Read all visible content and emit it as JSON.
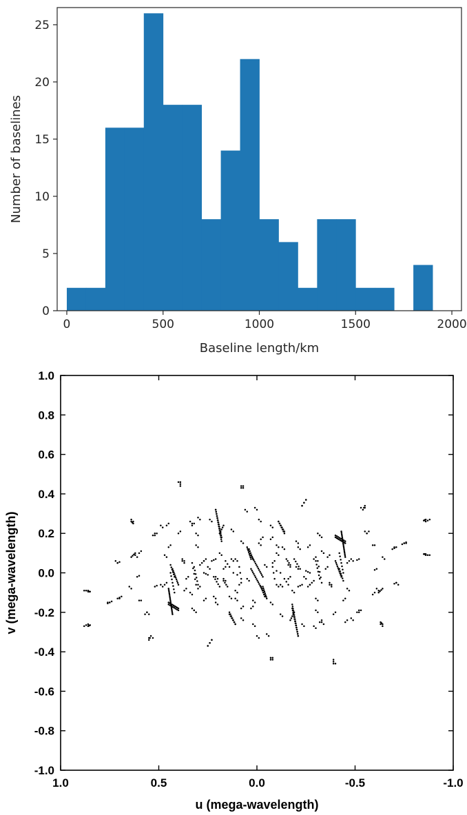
{
  "chart_data": [
    {
      "type": "bar",
      "subtype": "histogram",
      "xlabel": "Baseline length/km",
      "ylabel": "Number of baselines",
      "xlim": [
        -50,
        2050
      ],
      "ylim": [
        0,
        26.5
      ],
      "xticks": [
        0,
        500,
        1000,
        1500,
        2000
      ],
      "yticks": [
        0,
        5,
        10,
        15,
        20,
        25
      ],
      "bin_width": 100,
      "bins": [
        {
          "start": 0,
          "end": 100,
          "count": 2
        },
        {
          "start": 100,
          "end": 200,
          "count": 2
        },
        {
          "start": 200,
          "end": 300,
          "count": 16
        },
        {
          "start": 300,
          "end": 400,
          "count": 16
        },
        {
          "start": 400,
          "end": 500,
          "count": 26
        },
        {
          "start": 500,
          "end": 600,
          "count": 18
        },
        {
          "start": 600,
          "end": 700,
          "count": 18
        },
        {
          "start": 700,
          "end": 800,
          "count": 8
        },
        {
          "start": 800,
          "end": 900,
          "count": 14
        },
        {
          "start": 900,
          "end": 1000,
          "count": 22
        },
        {
          "start": 1000,
          "end": 1100,
          "count": 8
        },
        {
          "start": 1100,
          "end": 1200,
          "count": 6
        },
        {
          "start": 1200,
          "end": 1300,
          "count": 2
        },
        {
          "start": 1300,
          "end": 1400,
          "count": 8
        },
        {
          "start": 1400,
          "end": 1500,
          "count": 8
        },
        {
          "start": 1500,
          "end": 1600,
          "count": 2
        },
        {
          "start": 1600,
          "end": 1700,
          "count": 2
        },
        {
          "start": 1700,
          "end": 1800,
          "count": 0
        },
        {
          "start": 1800,
          "end": 1900,
          "count": 4
        },
        {
          "start": 1900,
          "end": 2000,
          "count": 0
        }
      ],
      "colors": {
        "bar": "#1f77b4",
        "frame": "#262626"
      }
    },
    {
      "type": "scatter",
      "xlabel": "u (mega-wavelength)",
      "ylabel": "v (mega-wavelength)",
      "xlim": [
        1.0,
        -1.0
      ],
      "ylim": [
        -1.0,
        1.0
      ],
      "x_reversed": true,
      "xticks": [
        1.0,
        0.5,
        0.0,
        -0.5,
        -1.0
      ],
      "xtick_labels": [
        "1.0",
        "0.5",
        "0.0",
        "-0.5",
        "-1.0"
      ],
      "yticks": [
        1.0,
        0.8,
        0.6,
        0.4,
        0.2,
        0.0,
        -0.2,
        -0.4,
        -0.6,
        -0.8,
        -1.0
      ],
      "ytick_labels": [
        "1.0",
        "0.8",
        "0.6",
        "0.4",
        "0.2",
        "0.0",
        "-0.2",
        "-0.4",
        "-0.6",
        "-0.8",
        "-1.0"
      ],
      "marker_color": "#000000",
      "tracks": [
        {
          "u0": 0.86,
          "v0": -0.095,
          "u1": 0.85,
          "v1": -0.095,
          "n": 4
        },
        {
          "u0": 0.86,
          "v0": -0.27,
          "u1": 0.85,
          "v1": -0.265,
          "n": 4
        },
        {
          "u0": 0.76,
          "v0": -0.155,
          "u1": 0.74,
          "v1": -0.145,
          "n": 3
        },
        {
          "u0": 0.71,
          "v0": -0.13,
          "u1": 0.7,
          "v1": -0.125,
          "n": 2
        },
        {
          "u0": 0.71,
          "v0": 0.05,
          "u1": 0.7,
          "v1": 0.055,
          "n": 2
        },
        {
          "u0": 0.64,
          "v0": 0.26,
          "u1": 0.63,
          "v1": 0.25,
          "n": 3
        },
        {
          "u0": 0.64,
          "v0": 0.08,
          "u1": 0.62,
          "v1": 0.1,
          "n": 4
        },
        {
          "u0": 0.61,
          "v0": -0.02,
          "u1": 0.6,
          "v1": -0.015,
          "n": 2
        },
        {
          "u0": 0.57,
          "v0": -0.21,
          "u1": 0.56,
          "v1": -0.2,
          "n": 2
        },
        {
          "u0": 0.55,
          "v0": -0.34,
          "u1": 0.54,
          "v1": -0.32,
          "n": 3
        },
        {
          "u0": 0.53,
          "v0": 0.19,
          "u1": 0.52,
          "v1": 0.2,
          "n": 2
        },
        {
          "u0": 0.52,
          "v0": -0.07,
          "u1": 0.51,
          "v1": -0.065,
          "n": 2
        },
        {
          "u0": 0.49,
          "v0": 0.24,
          "u1": 0.48,
          "v1": 0.23,
          "n": 2
        },
        {
          "u0": 0.47,
          "v0": 0.09,
          "u1": 0.46,
          "v1": 0.08,
          "n": 2
        },
        {
          "u0": 0.47,
          "v0": -0.06,
          "u1": 0.46,
          "v1": -0.05,
          "n": 2
        },
        {
          "u0": 0.45,
          "v0": -0.08,
          "u1": 0.43,
          "v1": -0.21,
          "n": 18
        },
        {
          "u0": 0.45,
          "v0": -0.16,
          "u1": 0.4,
          "v1": -0.19,
          "n": 8
        },
        {
          "u0": 0.44,
          "v0": 0.04,
          "u1": 0.42,
          "v1": -0.02,
          "n": 6
        },
        {
          "u0": 0.4,
          "v0": 0.46,
          "u1": 0.39,
          "v1": 0.44,
          "n": 2
        },
        {
          "u0": 0.4,
          "v0": 0.2,
          "u1": 0.39,
          "v1": 0.21,
          "n": 2
        },
        {
          "u0": 0.38,
          "v0": 0.07,
          "u1": 0.37,
          "v1": 0.06,
          "n": 2
        },
        {
          "u0": 0.36,
          "v0": -0.03,
          "u1": 0.35,
          "v1": -0.02,
          "n": 2
        },
        {
          "u0": 0.34,
          "v0": -0.1,
          "u1": 0.33,
          "v1": -0.11,
          "n": 2
        },
        {
          "u0": 0.33,
          "v0": -0.18,
          "u1": 0.32,
          "v1": -0.19,
          "n": 2
        },
        {
          "u0": 0.33,
          "v0": 0.24,
          "u1": 0.32,
          "v1": 0.25,
          "n": 2
        },
        {
          "u0": 0.32,
          "v0": 0.03,
          "u1": 0.3,
          "v1": -0.06,
          "n": 6
        },
        {
          "u0": 0.31,
          "v0": 0.14,
          "u1": 0.3,
          "v1": 0.13,
          "n": 2
        },
        {
          "u0": 0.3,
          "v0": 0.28,
          "u1": 0.29,
          "v1": 0.27,
          "n": 2
        },
        {
          "u0": 0.27,
          "v0": 0.06,
          "u1": 0.26,
          "v1": 0.07,
          "n": 2
        },
        {
          "u0": 0.27,
          "v0": 0.0,
          "u1": 0.25,
          "v1": -0.01,
          "n": 3
        },
        {
          "u0": 0.25,
          "v0": -0.37,
          "u1": 0.23,
          "v1": -0.34,
          "n": 3
        },
        {
          "u0": 0.24,
          "v0": 0.27,
          "u1": 0.23,
          "v1": 0.26,
          "n": 2
        },
        {
          "u0": 0.23,
          "v0": 0.06,
          "u1": 0.21,
          "v1": 0.07,
          "n": 3
        },
        {
          "u0": 0.22,
          "v0": -0.12,
          "u1": 0.21,
          "v1": -0.13,
          "n": 2
        },
        {
          "u0": 0.21,
          "v0": -0.02,
          "u1": 0.2,
          "v1": -0.03,
          "n": 2
        },
        {
          "u0": 0.21,
          "v0": 0.32,
          "u1": 0.18,
          "v1": 0.16,
          "n": 16
        },
        {
          "u0": 0.19,
          "v0": 0.2,
          "u1": 0.17,
          "v1": 0.24,
          "n": 5
        },
        {
          "u0": 0.19,
          "v0": 0.1,
          "u1": 0.18,
          "v1": 0.09,
          "n": 2
        },
        {
          "u0": 0.17,
          "v0": -0.04,
          "u1": 0.15,
          "v1": -0.07,
          "n": 4
        },
        {
          "u0": 0.17,
          "v0": 0.02,
          "u1": 0.16,
          "v1": 0.03,
          "n": 2
        },
        {
          "u0": 0.14,
          "v0": -0.21,
          "u1": 0.11,
          "v1": -0.26,
          "n": 6
        },
        {
          "u0": 0.13,
          "v0": 0.22,
          "u1": 0.12,
          "v1": 0.21,
          "n": 2
        },
        {
          "u0": 0.13,
          "v0": 0.07,
          "u1": 0.12,
          "v1": 0.06,
          "n": 2
        },
        {
          "u0": 0.12,
          "v0": 0.0,
          "u1": 0.1,
          "v1": -0.01,
          "n": 2
        },
        {
          "u0": 0.11,
          "v0": -0.13,
          "u1": 0.1,
          "v1": -0.14,
          "n": 2
        },
        {
          "u0": 0.09,
          "v0": 0.03,
          "u1": 0.08,
          "v1": -0.03,
          "n": 3
        },
        {
          "u0": 0.08,
          "v0": 0.16,
          "u1": 0.07,
          "v1": 0.15,
          "n": 2
        },
        {
          "u0": 0.08,
          "v0": -0.23,
          "u1": 0.07,
          "v1": -0.24,
          "n": 2
        },
        {
          "u0": 0.07,
          "v0": 0.44,
          "u1": 0.07,
          "v1": 0.43,
          "n": 2
        },
        {
          "u0": 0.04,
          "v0": 0.12,
          "u1": 0.02,
          "v1": 0.07,
          "n": 6
        },
        {
          "u0": 0.03,
          "v0": -0.18,
          "u1": 0.02,
          "v1": -0.17,
          "n": 2
        },
        {
          "u0": 0.03,
          "v0": 0.02,
          "u1": -0.03,
          "v1": -0.09,
          "n": 14
        },
        {
          "u0": 0.02,
          "v0": -0.26,
          "u1": 0.01,
          "v1": -0.27,
          "n": 2
        },
        {
          "u0": 0.01,
          "v0": 0.33,
          "u1": 0.0,
          "v1": 0.32,
          "n": 2
        },
        {
          "u0": -0.01,
          "v0": 0.15,
          "u1": -0.02,
          "v1": 0.14,
          "n": 2
        },
        {
          "u0": -0.03,
          "v0": -0.07,
          "u1": -0.05,
          "v1": -0.13,
          "n": 8
        },
        {
          "u0": -0.04,
          "v0": 0.04,
          "u1": -0.05,
          "v1": 0.03,
          "n": 2
        },
        {
          "u0": -0.05,
          "v0": -0.31,
          "u1": -0.06,
          "v1": -0.32,
          "n": 2
        },
        {
          "u0": -0.07,
          "v0": 0.17,
          "u1": -0.08,
          "v1": 0.18,
          "n": 2
        },
        {
          "u0": -0.08,
          "v0": 0.05,
          "u1": -0.09,
          "v1": 0.06,
          "n": 2
        },
        {
          "u0": -0.08,
          "v0": -0.44,
          "u1": -0.08,
          "v1": -0.43,
          "n": 2
        },
        {
          "u0": -0.1,
          "v0": 0.1,
          "u1": -0.11,
          "v1": 0.09,
          "n": 2
        },
        {
          "u0": -0.1,
          "v0": -0.06,
          "u1": -0.11,
          "v1": -0.07,
          "n": 2
        },
        {
          "u0": -0.11,
          "v0": 0.26,
          "u1": -0.14,
          "v1": 0.2,
          "n": 7
        },
        {
          "u0": -0.13,
          "v0": 0.13,
          "u1": -0.14,
          "v1": 0.12,
          "n": 2
        },
        {
          "u0": -0.14,
          "v0": -0.03,
          "u1": -0.16,
          "v1": -0.06,
          "n": 3
        },
        {
          "u0": -0.16,
          "v0": 0.04,
          "u1": -0.17,
          "v1": 0.03,
          "n": 2
        },
        {
          "u0": -0.18,
          "v0": -0.18,
          "u1": -0.21,
          "v1": -0.32,
          "n": 14
        },
        {
          "u0": -0.19,
          "v0": 0.07,
          "u1": -0.22,
          "v1": 0.02,
          "n": 5
        },
        {
          "u0": -0.2,
          "v0": 0.16,
          "u1": -0.21,
          "v1": 0.15,
          "n": 2
        },
        {
          "u0": -0.23,
          "v0": 0.34,
          "u1": -0.25,
          "v1": 0.37,
          "n": 3
        },
        {
          "u0": -0.24,
          "v0": -0.02,
          "u1": -0.25,
          "v1": -0.03,
          "n": 2
        },
        {
          "u0": -0.26,
          "v0": 0.13,
          "u1": -0.27,
          "v1": 0.14,
          "n": 2
        },
        {
          "u0": -0.27,
          "v0": -0.06,
          "u1": -0.29,
          "v1": -0.04,
          "n": 3
        },
        {
          "u0": -0.29,
          "v0": 0.07,
          "u1": -0.3,
          "v1": 0.08,
          "n": 2
        },
        {
          "u0": -0.3,
          "v0": -0.19,
          "u1": -0.31,
          "v1": -0.2,
          "n": 2
        },
        {
          "u0": -0.31,
          "v0": 0.2,
          "u1": -0.32,
          "v1": 0.19,
          "n": 2
        },
        {
          "u0": -0.31,
          "v0": 0.06,
          "u1": -0.33,
          "v1": -0.05,
          "n": 5
        },
        {
          "u0": -0.33,
          "v0": -0.25,
          "u1": -0.34,
          "v1": -0.26,
          "n": 2
        },
        {
          "u0": -0.36,
          "v0": 0.08,
          "u1": -0.37,
          "v1": 0.09,
          "n": 2
        },
        {
          "u0": -0.37,
          "v0": -0.05,
          "u1": -0.38,
          "v1": -0.06,
          "n": 2
        },
        {
          "u0": -0.39,
          "v0": -0.45,
          "u1": -0.39,
          "v1": -0.46,
          "n": 2
        },
        {
          "u0": -0.4,
          "v0": 0.18,
          "u1": -0.45,
          "v1": 0.15,
          "n": 9
        },
        {
          "u0": -0.4,
          "v0": 0.06,
          "u1": -0.43,
          "v1": -0.02,
          "n": 10
        },
        {
          "u0": -0.42,
          "v0": 0.1,
          "u1": -0.44,
          "v1": 0.0,
          "n": 7
        },
        {
          "u0": -0.44,
          "v0": -0.14,
          "u1": -0.45,
          "v1": -0.13,
          "n": 2
        },
        {
          "u0": -0.45,
          "v0": -0.25,
          "u1": -0.46,
          "v1": -0.24,
          "n": 2
        },
        {
          "u0": -0.48,
          "v0": 0.07,
          "u1": -0.49,
          "v1": 0.06,
          "n": 2
        },
        {
          "u0": -0.51,
          "v0": -0.2,
          "u1": -0.52,
          "v1": -0.19,
          "n": 2
        },
        {
          "u0": -0.53,
          "v0": 0.33,
          "u1": -0.55,
          "v1": 0.33,
          "n": 2
        },
        {
          "u0": -0.55,
          "v0": 0.21,
          "u1": -0.56,
          "v1": 0.2,
          "n": 2
        },
        {
          "u0": -0.59,
          "v0": -0.11,
          "u1": -0.6,
          "v1": -0.1,
          "n": 2
        },
        {
          "u0": -0.61,
          "v0": -0.08,
          "u1": -0.62,
          "v1": -0.09,
          "n": 2
        },
        {
          "u0": -0.59,
          "v0": 0.14,
          "u1": -0.6,
          "v1": 0.14,
          "n": 2
        },
        {
          "u0": -0.63,
          "v0": -0.26,
          "u1": -0.64,
          "v1": -0.27,
          "n": 2
        },
        {
          "u0": -0.64,
          "v0": 0.08,
          "u1": -0.65,
          "v1": 0.07,
          "n": 2
        },
        {
          "u0": -0.69,
          "v0": 0.12,
          "u1": -0.7,
          "v1": 0.13,
          "n": 2
        },
        {
          "u0": -0.71,
          "v0": -0.05,
          "u1": -0.72,
          "v1": -0.06,
          "n": 2
        },
        {
          "u0": -0.75,
          "v0": 0.15,
          "u1": -0.76,
          "v1": 0.15,
          "n": 2
        },
        {
          "u0": -0.86,
          "v0": 0.26,
          "u1": -0.88,
          "v1": 0.27,
          "n": 3
        },
        {
          "u0": -0.86,
          "v0": 0.09,
          "u1": -0.88,
          "v1": 0.09,
          "n": 3
        }
      ]
    }
  ]
}
